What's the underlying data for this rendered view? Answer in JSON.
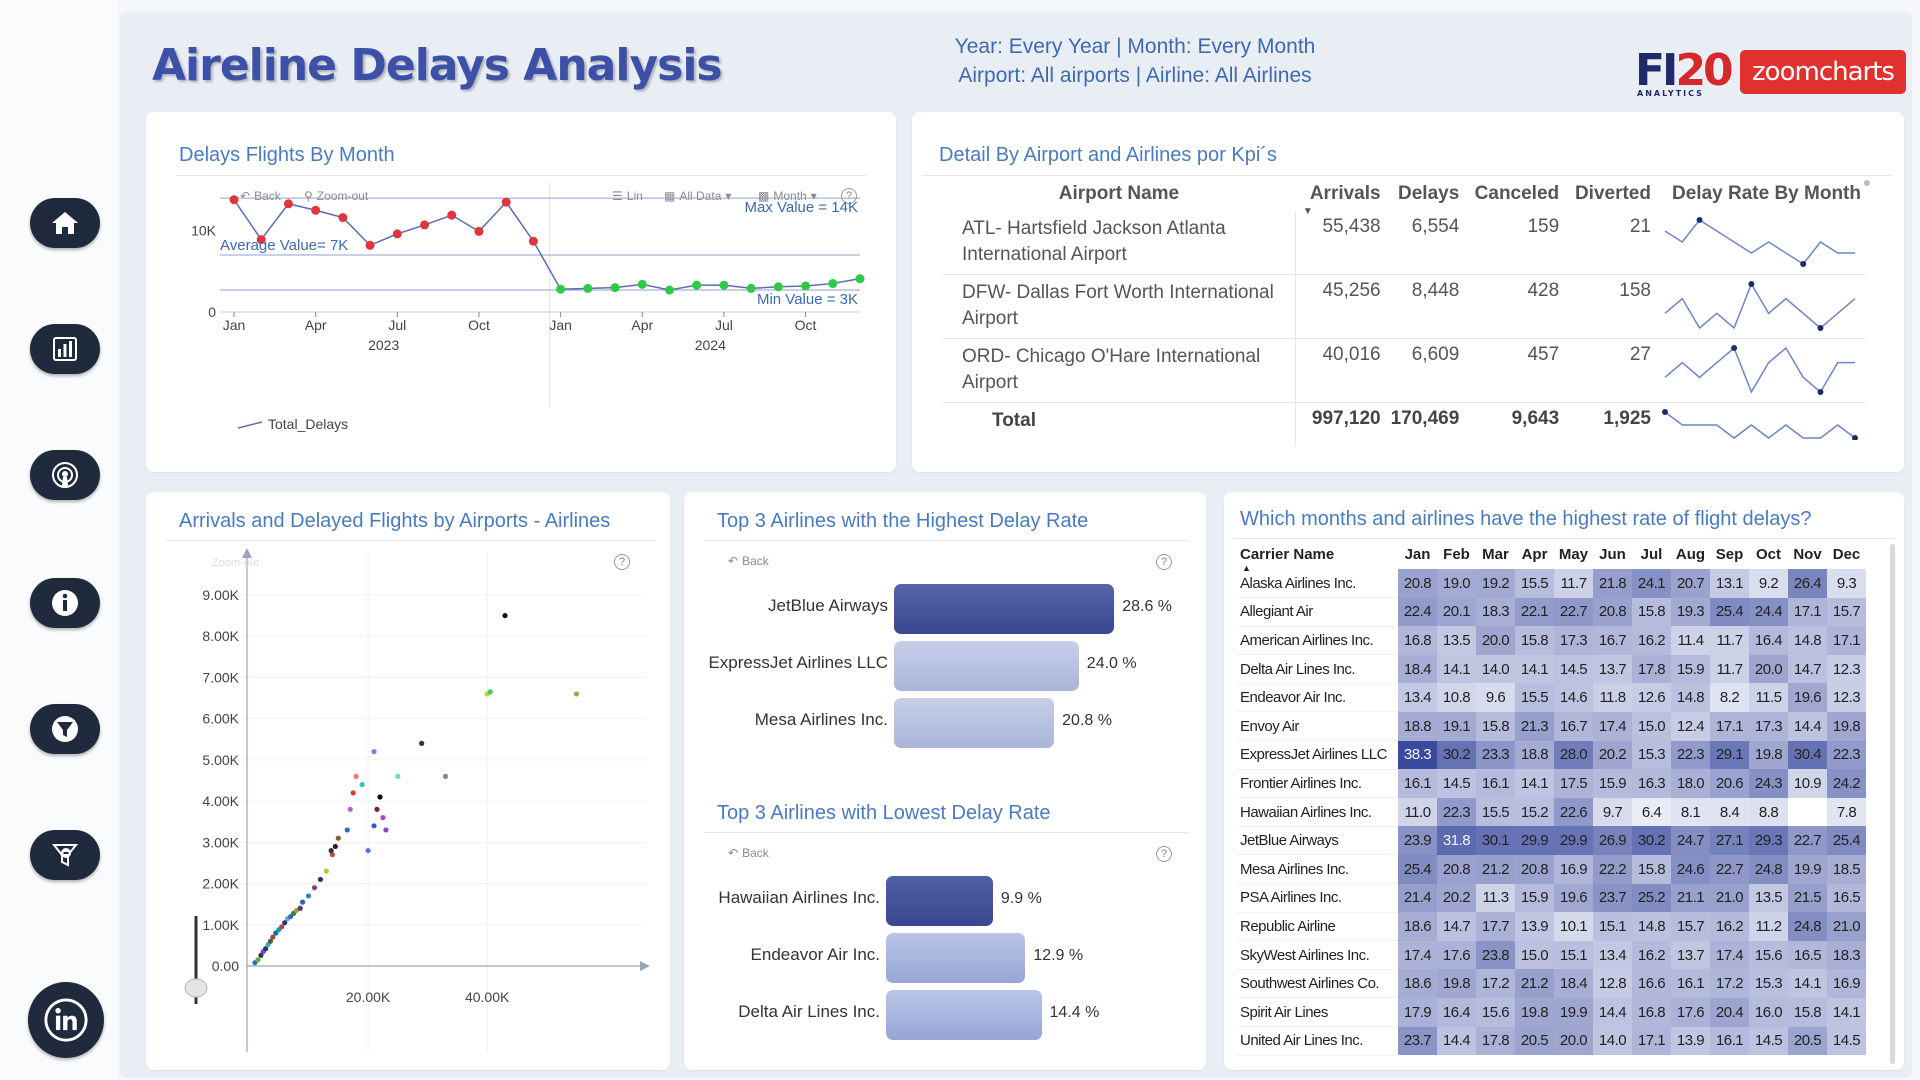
{
  "header": {
    "title": "Aireline Delays Analysis",
    "filter_line1": "Year: Every Year | Month: Every Month",
    "filter_line2": "Airport: All airports | Airline: All Airlines",
    "logo_fi": "FI",
    "logo_fi_num": "20",
    "logo_fi_sub": "ANALYTICS",
    "logo_zoom": "zoomcharts"
  },
  "sidebar": {
    "items": [
      {
        "name": "home-icon"
      },
      {
        "name": "bar-chart-icon"
      },
      {
        "name": "broadcast-icon"
      },
      {
        "name": "info-icon"
      },
      {
        "name": "filter-icon"
      },
      {
        "name": "filter-clear-icon"
      },
      {
        "name": "linkedin-icon"
      }
    ]
  },
  "line_chart": {
    "title": "Delays Flights By Month",
    "toolbar": {
      "back": "Back",
      "zoom_out": "Zoom-out",
      "lin": "Lin",
      "all_data": "All Data",
      "month": "Month",
      "help": "?"
    },
    "legend": "Total_Delays",
    "annotations": {
      "max": "Max Value = 14K",
      "avg": "Average Value= 7K",
      "min": "Min Value = 3K"
    }
  },
  "kpi_table": {
    "title": "Detail By Airport and Airlines por Kpi´s",
    "columns": [
      "Airport Name",
      "Arrivals",
      "Delays",
      "Canceled",
      "Diverted",
      "Delay Rate By Month"
    ],
    "rows": [
      {
        "airport": "ATL- Hartsfield Jackson Atlanta International Airport",
        "arrivals": "55,438",
        "delays": "6,554",
        "canceled": "159",
        "diverted": "21",
        "spark": [
          5,
          4,
          6,
          5,
          4,
          3,
          4,
          3,
          2,
          4,
          3,
          3
        ]
      },
      {
        "airport": "DFW- Dallas Fort Worth International Airport",
        "arrivals": "45,256",
        "delays": "8,448",
        "canceled": "428",
        "diverted": "158",
        "spark": [
          3,
          4,
          2,
          3,
          2,
          5,
          3,
          4,
          3,
          2,
          3,
          4
        ]
      },
      {
        "airport": "ORD- Chicago O'Hare International Airport",
        "arrivals": "40,016",
        "delays": "6,609",
        "canceled": "457",
        "diverted": "27",
        "spark": [
          3,
          4,
          3,
          4,
          5,
          2,
          4,
          5,
          3,
          2,
          4,
          4
        ]
      }
    ],
    "total": {
      "label": "Total",
      "arrivals": "997,120",
      "delays": "170,469",
      "canceled": "9,643",
      "diverted": "1,925",
      "spark": [
        5,
        4,
        4,
        4,
        3,
        4,
        3,
        4,
        3,
        3,
        4,
        3
      ]
    }
  },
  "scatter": {
    "title": "Arrivals and Delayed Flights by Airports - Airlines",
    "toolbar": {
      "zoom": "Zoom-out",
      "help": "?"
    }
  },
  "top_high": {
    "title": "Top 3 Airlines with the Highest Delay Rate",
    "back": "Back",
    "help": "?",
    "items": [
      {
        "label": "JetBlue Airways",
        "value": 28.6,
        "text": "28.6 %"
      },
      {
        "label": "ExpressJet Airlines LLC",
        "value": 24.0,
        "text": "24.0 %"
      },
      {
        "label": "Mesa Airlines Inc.",
        "value": 20.8,
        "text": "20.8 %"
      }
    ]
  },
  "top_low": {
    "title": "Top 3 Airlines with Lowest Delay Rate",
    "back": "Back",
    "help": "?",
    "items": [
      {
        "label": "Hawaiian Airlines Inc.",
        "value": 9.9,
        "text": "9.9 %"
      },
      {
        "label": "Endeavor Air Inc.",
        "value": 12.9,
        "text": "12.9 %"
      },
      {
        "label": "Delta Air Lines Inc.",
        "value": 14.4,
        "text": "14.4 %"
      }
    ]
  },
  "heatmap": {
    "title": "Which months and airlines have the highest rate of flight delays?",
    "col_header": "Carrier Name",
    "months": [
      "Jan",
      "Feb",
      "Mar",
      "Apr",
      "May",
      "Jun",
      "Jul",
      "Aug",
      "Sep",
      "Oct",
      "Nov",
      "Dec"
    ],
    "rows": [
      {
        "name": "Alaska Airlines Inc.",
        "v": [
          "20.8",
          "19.0",
          "19.2",
          "15.5",
          "11.7",
          "21.8",
          "24.1",
          "20.7",
          "13.1",
          "9.2",
          "26.4",
          "9.3"
        ]
      },
      {
        "name": "Allegiant Air",
        "v": [
          "22.4",
          "20.1",
          "18.3",
          "22.1",
          "22.7",
          "20.8",
          "15.8",
          "19.3",
          "25.4",
          "24.4",
          "17.1",
          "15.7"
        ]
      },
      {
        "name": "American Airlines Inc.",
        "v": [
          "16.8",
          "13.5",
          "20.0",
          "15.8",
          "17.3",
          "16.7",
          "16.2",
          "11.4",
          "11.7",
          "16.4",
          "14.8",
          "17.1"
        ]
      },
      {
        "name": "Delta Air Lines Inc.",
        "v": [
          "18.4",
          "14.1",
          "14.0",
          "14.1",
          "14.5",
          "13.7",
          "17.8",
          "15.9",
          "11.7",
          "20.0",
          "14.7",
          "12.3"
        ]
      },
      {
        "name": "Endeavor Air Inc.",
        "v": [
          "13.4",
          "10.8",
          "9.6",
          "15.5",
          "14.6",
          "11.8",
          "12.6",
          "14.8",
          "8.2",
          "11.5",
          "19.6",
          "12.3"
        ]
      },
      {
        "name": "Envoy Air",
        "v": [
          "18.8",
          "19.1",
          "15.8",
          "21.3",
          "16.7",
          "17.4",
          "15.0",
          "12.4",
          "17.1",
          "17.3",
          "14.4",
          "19.8"
        ]
      },
      {
        "name": "ExpressJet Airlines LLC",
        "v": [
          "38.3",
          "30.2",
          "23.3",
          "18.8",
          "28.0",
          "20.2",
          "15.3",
          "22.3",
          "29.1",
          "19.8",
          "30.4",
          "22.3"
        ]
      },
      {
        "name": "Frontier Airlines Inc.",
        "v": [
          "16.1",
          "14.5",
          "16.1",
          "14.1",
          "17.5",
          "15.9",
          "16.3",
          "18.0",
          "20.6",
          "24.3",
          "10.9",
          "24.2"
        ]
      },
      {
        "name": "Hawaiian Airlines Inc.",
        "v": [
          "11.0",
          "22.3",
          "15.5",
          "15.2",
          "22.6",
          "9.7",
          "6.4",
          "8.1",
          "8.4",
          "8.8",
          "",
          "7.8"
        ]
      },
      {
        "name": "JetBlue Airways",
        "v": [
          "23.9",
          "31.8",
          "30.1",
          "29.9",
          "29.9",
          "26.9",
          "30.2",
          "24.7",
          "27.1",
          "29.3",
          "22.7",
          "25.4"
        ]
      },
      {
        "name": "Mesa Airlines Inc.",
        "v": [
          "25.4",
          "20.8",
          "21.2",
          "20.8",
          "16.9",
          "22.2",
          "15.8",
          "24.6",
          "22.7",
          "24.8",
          "19.9",
          "18.5"
        ]
      },
      {
        "name": "PSA Airlines Inc.",
        "v": [
          "21.4",
          "20.2",
          "11.3",
          "15.9",
          "19.6",
          "23.7",
          "25.2",
          "21.1",
          "21.0",
          "13.5",
          "21.5",
          "16.5"
        ]
      },
      {
        "name": "Republic Airline",
        "v": [
          "18.6",
          "14.7",
          "17.7",
          "13.9",
          "10.1",
          "15.1",
          "14.8",
          "15.7",
          "16.2",
          "11.2",
          "24.8",
          "21.0"
        ]
      },
      {
        "name": "SkyWest Airlines Inc.",
        "v": [
          "17.4",
          "17.6",
          "23.8",
          "15.0",
          "15.1",
          "13.4",
          "16.2",
          "13.7",
          "17.4",
          "15.6",
          "16.5",
          "18.3"
        ]
      },
      {
        "name": "Southwest Airlines Co.",
        "v": [
          "18.6",
          "19.8",
          "17.2",
          "21.2",
          "18.4",
          "12.8",
          "16.6",
          "16.1",
          "17.2",
          "15.3",
          "14.1",
          "16.9"
        ]
      },
      {
        "name": "Spirit Air Lines",
        "v": [
          "17.9",
          "16.4",
          "15.6",
          "19.8",
          "19.9",
          "14.4",
          "16.8",
          "17.6",
          "20.4",
          "16.0",
          "15.8",
          "14.1"
        ]
      },
      {
        "name": "United Air Lines Inc.",
        "v": [
          "23.7",
          "14.4",
          "17.8",
          "20.5",
          "20.0",
          "14.0",
          "17.1",
          "13.9",
          "16.1",
          "14.5",
          "20.5",
          "14.5"
        ]
      }
    ]
  },
  "chart_data": [
    {
      "type": "line",
      "title": "Delays Flights By Month",
      "x": [
        "Jan 2023",
        "Feb 2023",
        "Mar 2023",
        "Apr 2023",
        "May 2023",
        "Jun 2023",
        "Jul 2023",
        "Aug 2023",
        "Sep 2023",
        "Oct 2023",
        "Nov 2023",
        "Dec 2023",
        "Jan 2024",
        "Feb 2024",
        "Mar 2024",
        "Apr 2024",
        "May 2024",
        "Jun 2024",
        "Jul 2024",
        "Aug 2024",
        "Sep 2024",
        "Oct 2024",
        "Nov 2024",
        "Dec 2024"
      ],
      "x_tick_labels": [
        "Jan",
        "Apr",
        "Jul",
        "Oct",
        "Jan",
        "Apr",
        "Jul",
        "Oct"
      ],
      "x_group_labels": [
        "2023",
        "2024"
      ],
      "y_ticks": [
        "0",
        "10K"
      ],
      "ylim": [
        0,
        14500
      ],
      "series": [
        {
          "name": "Total_Delays",
          "values": [
            13800,
            8900,
            13300,
            12500,
            11600,
            8200,
            9600,
            10700,
            11900,
            9900,
            13500,
            8700,
            2800,
            2900,
            3000,
            3400,
            2700,
            3300,
            3300,
            2900,
            3100,
            3200,
            3500,
            4100
          ]
        }
      ],
      "reference_lines": [
        {
          "label": "Max Value = 14K",
          "value": 14000
        },
        {
          "label": "Average Value= 7K",
          "value": 7000
        },
        {
          "label": "Min Value = 3K",
          "value": 2700
        }
      ]
    },
    {
      "type": "scatter",
      "title": "Arrivals and Delayed Flights by Airports - Airlines",
      "x_ticks": [
        "20.00K",
        "40.00K"
      ],
      "y_ticks": [
        "0.00",
        "1.00K",
        "2.00K",
        "3.00K",
        "4.00K",
        "5.00K",
        "6.00K",
        "7.00K",
        "8.00K",
        "9.00K"
      ],
      "xlim": [
        0,
        65000
      ],
      "ylim": [
        0,
        9800
      ],
      "points": [
        [
          1000,
          80,
          "#2b6cc4"
        ],
        [
          1500,
          150,
          "#66aa33"
        ],
        [
          2000,
          260,
          "#333366"
        ],
        [
          2400,
          350,
          "#7f3fbf"
        ],
        [
          2800,
          420,
          "#1b3a6b"
        ],
        [
          3200,
          520,
          "#33aacc"
        ],
        [
          3600,
          600,
          "#555555"
        ],
        [
          4000,
          700,
          "#8b5a2b"
        ],
        [
          4500,
          800,
          "#2266aa"
        ],
        [
          5000,
          880,
          "#00aa88"
        ],
        [
          5500,
          950,
          "#cc3366"
        ],
        [
          6000,
          1050,
          "#1b3a6b"
        ],
        [
          6500,
          1150,
          "#7799cc"
        ],
        [
          7000,
          1200,
          "#2b6cc4"
        ],
        [
          7500,
          1280,
          "#447744"
        ],
        [
          8000,
          1350,
          "#99aa22"
        ],
        [
          8600,
          1400,
          "#553399"
        ],
        [
          9000,
          1550,
          "#336699"
        ],
        [
          10000,
          1700,
          "#2288cc"
        ],
        [
          11000,
          1900,
          "#774488"
        ],
        [
          12000,
          2100,
          "#1b3a6b"
        ],
        [
          13000,
          2300,
          "#aacc33"
        ],
        [
          14000,
          2700,
          "#cc4444"
        ],
        [
          14500,
          2900,
          "#441122"
        ],
        [
          15000,
          3100,
          "#8b5a2b"
        ],
        [
          13800,
          2800,
          "#333333"
        ],
        [
          16500,
          3300,
          "#2b6cc4"
        ],
        [
          17000,
          3800,
          "#aa66cc"
        ],
        [
          17500,
          4200,
          "#ee3333"
        ],
        [
          18000,
          4600,
          "#ee7777"
        ],
        [
          19000,
          4400,
          "#33ccaa"
        ],
        [
          21000,
          3400,
          "#3355cc"
        ],
        [
          21500,
          3800,
          "#772233"
        ],
        [
          22000,
          4100,
          "#111111"
        ],
        [
          22500,
          3600,
          "#aa44cc"
        ],
        [
          23000,
          3300,
          "#8844cc"
        ],
        [
          20000,
          2800,
          "#5577dd"
        ],
        [
          21000,
          5200,
          "#6688ee"
        ],
        [
          25000,
          4600,
          "#66ddcc"
        ],
        [
          29000,
          5400,
          "#552244"
        ],
        [
          33000,
          4600,
          "#888888"
        ],
        [
          40000,
          6600,
          "#cccc33"
        ],
        [
          40500,
          6650,
          "#33cc66"
        ],
        [
          43000,
          8500,
          "#111111"
        ],
        [
          55000,
          6600,
          "#99aa44"
        ]
      ]
    },
    {
      "type": "bar",
      "title": "Top 3 Airlines with the Highest Delay Rate",
      "categories": [
        "JetBlue Airways",
        "ExpressJet Airlines LLC",
        "Mesa Airlines Inc."
      ],
      "values": [
        28.6,
        24.0,
        20.8
      ]
    },
    {
      "type": "bar",
      "title": "Top 3 Airlines with Lowest Delay Rate",
      "categories": [
        "Hawaiian Airlines Inc.",
        "Endeavor Air Inc.",
        "Delta Air Lines Inc."
      ],
      "values": [
        9.9,
        12.9,
        14.4
      ]
    }
  ]
}
